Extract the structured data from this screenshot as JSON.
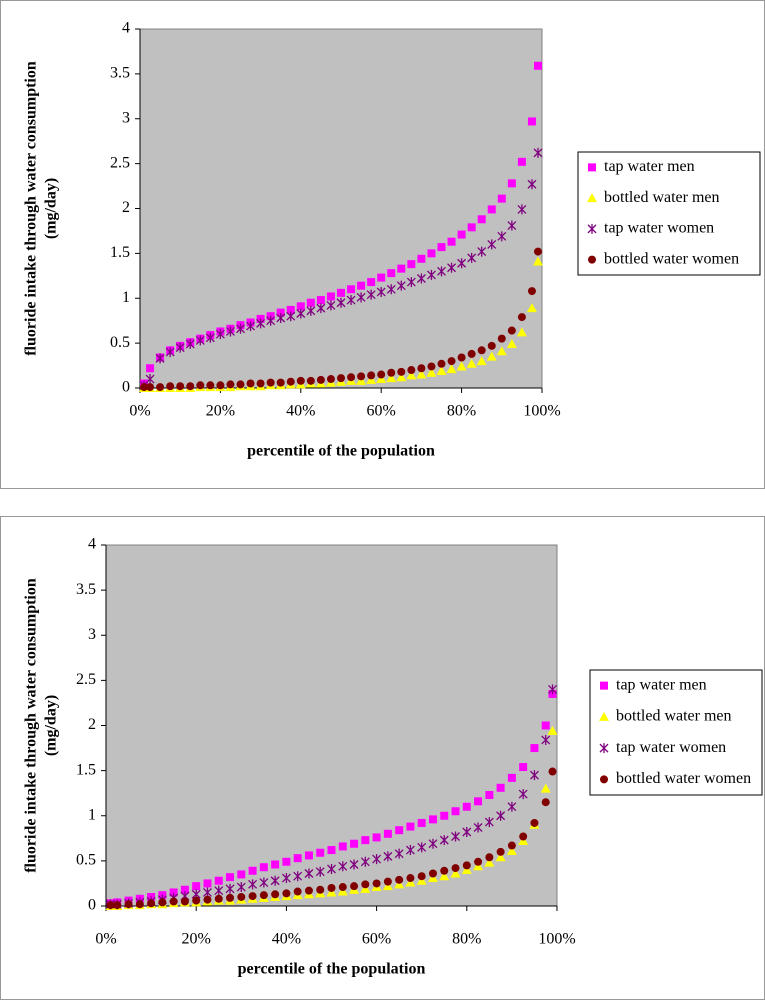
{
  "chart_data": [
    {
      "type": "scatter",
      "xlabel": "percentile of the population",
      "ylabel": [
        "fluoride intake through water consumption",
        "(mg/day)"
      ],
      "x": [
        1,
        2.5,
        5,
        7.5,
        10,
        12.5,
        15,
        17.5,
        20,
        22.5,
        25,
        27.5,
        30,
        32.5,
        35,
        37.5,
        40,
        42.5,
        45,
        47.5,
        50,
        52.5,
        55,
        57.5,
        60,
        62.5,
        65,
        67.5,
        70,
        72.5,
        75,
        77.5,
        80,
        82.5,
        85,
        87.5,
        90,
        92.5,
        95,
        97.5,
        99
      ],
      "xlim": [
        0,
        100
      ],
      "xticks": [
        {
          "value": 0,
          "label": "0%"
        },
        {
          "value": 20,
          "label": "20%"
        },
        {
          "value": 40,
          "label": "40%"
        },
        {
          "value": 60,
          "label": "60%"
        },
        {
          "value": 80,
          "label": "80%"
        },
        {
          "value": 100,
          "label": "100%"
        }
      ],
      "ylim": [
        0,
        4
      ],
      "yticks": [
        0,
        0.5,
        1,
        1.5,
        2,
        2.5,
        3,
        3.5,
        4
      ],
      "grid": false,
      "legend": "right",
      "series": [
        {
          "name": "tap water men",
          "color": "#ff00ff",
          "marker": "square",
          "values": [
            0.05,
            0.22,
            0.34,
            0.42,
            0.47,
            0.51,
            0.55,
            0.59,
            0.63,
            0.66,
            0.7,
            0.73,
            0.77,
            0.8,
            0.84,
            0.87,
            0.91,
            0.95,
            0.98,
            1.02,
            1.06,
            1.1,
            1.14,
            1.18,
            1.23,
            1.28,
            1.33,
            1.38,
            1.44,
            1.5,
            1.57,
            1.63,
            1.71,
            1.79,
            1.88,
            1.99,
            2.11,
            2.28,
            2.52,
            2.97,
            3.59
          ]
        },
        {
          "name": "bottled water men",
          "color": "#ffff00",
          "marker": "triangle",
          "values": [
            0,
            0,
            0,
            0,
            0,
            0,
            0.01,
            0.01,
            0.01,
            0.01,
            0.02,
            0.02,
            0.02,
            0.03,
            0.03,
            0.04,
            0.04,
            0.05,
            0.05,
            0.06,
            0.07,
            0.08,
            0.08,
            0.09,
            0.1,
            0.11,
            0.12,
            0.14,
            0.15,
            0.17,
            0.19,
            0.21,
            0.24,
            0.27,
            0.3,
            0.35,
            0.41,
            0.49,
            0.62,
            0.89,
            1.41
          ]
        },
        {
          "name": "tap water women",
          "color": "#800080",
          "marker": "asterisk",
          "values": [
            0.03,
            0.1,
            0.33,
            0.4,
            0.45,
            0.49,
            0.53,
            0.56,
            0.6,
            0.63,
            0.66,
            0.69,
            0.72,
            0.75,
            0.78,
            0.8,
            0.83,
            0.86,
            0.89,
            0.92,
            0.95,
            0.98,
            1.01,
            1.04,
            1.07,
            1.1,
            1.14,
            1.18,
            1.22,
            1.26,
            1.3,
            1.34,
            1.39,
            1.45,
            1.52,
            1.6,
            1.69,
            1.81,
            1.99,
            2.27,
            2.62
          ]
        },
        {
          "name": "bottled water women",
          "color": "#800000",
          "marker": "circle",
          "values": [
            0.01,
            0.01,
            0.01,
            0.02,
            0.02,
            0.02,
            0.03,
            0.03,
            0.03,
            0.04,
            0.04,
            0.05,
            0.05,
            0.06,
            0.06,
            0.07,
            0.08,
            0.08,
            0.09,
            0.1,
            0.11,
            0.12,
            0.13,
            0.14,
            0.15,
            0.17,
            0.18,
            0.2,
            0.22,
            0.24,
            0.27,
            0.3,
            0.34,
            0.38,
            0.42,
            0.47,
            0.55,
            0.64,
            0.79,
            1.08,
            1.52
          ]
        }
      ]
    },
    {
      "type": "scatter",
      "xlabel": "percentile of the population",
      "ylabel": [
        "fluoride intake through water consumption",
        "(mg/day)"
      ],
      "x": [
        1,
        2.5,
        5,
        7.5,
        10,
        12.5,
        15,
        17.5,
        20,
        22.5,
        25,
        27.5,
        30,
        32.5,
        35,
        37.5,
        40,
        42.5,
        45,
        47.5,
        50,
        52.5,
        55,
        57.5,
        60,
        62.5,
        65,
        67.5,
        70,
        72.5,
        75,
        77.5,
        80,
        82.5,
        85,
        87.5,
        90,
        92.5,
        95,
        97.5,
        99
      ],
      "xlim": [
        0,
        100
      ],
      "xticks": [
        {
          "value": 0,
          "label": "0%"
        },
        {
          "value": 20,
          "label": "20%"
        },
        {
          "value": 40,
          "label": "40%"
        },
        {
          "value": 60,
          "label": "60%"
        },
        {
          "value": 80,
          "label": "80%"
        },
        {
          "value": 100,
          "label": "100%"
        }
      ],
      "ylim": [
        0,
        4
      ],
      "yticks": [
        0,
        0.5,
        1,
        1.5,
        2,
        2.5,
        3,
        3.5,
        4
      ],
      "grid": false,
      "legend": "right",
      "series": [
        {
          "name": "tap water men",
          "color": "#ff00ff",
          "marker": "square",
          "values": [
            0.03,
            0.04,
            0.06,
            0.08,
            0.1,
            0.12,
            0.15,
            0.18,
            0.22,
            0.25,
            0.28,
            0.32,
            0.35,
            0.39,
            0.43,
            0.46,
            0.49,
            0.53,
            0.56,
            0.59,
            0.62,
            0.66,
            0.69,
            0.73,
            0.76,
            0.8,
            0.84,
            0.88,
            0.92,
            0.96,
            1.0,
            1.05,
            1.1,
            1.16,
            1.23,
            1.31,
            1.42,
            1.54,
            1.75,
            2.0,
            2.35
          ]
        },
        {
          "name": "bottled water men",
          "color": "#ffff00",
          "marker": "triangle",
          "values": [
            0,
            0,
            0.01,
            0.01,
            0.02,
            0.02,
            0.03,
            0.04,
            0.04,
            0.05,
            0.06,
            0.06,
            0.07,
            0.08,
            0.09,
            0.1,
            0.11,
            0.12,
            0.13,
            0.14,
            0.15,
            0.16,
            0.18,
            0.19,
            0.21,
            0.22,
            0.24,
            0.26,
            0.28,
            0.31,
            0.33,
            0.36,
            0.4,
            0.44,
            0.48,
            0.54,
            0.61,
            0.72,
            0.9,
            1.3,
            1.94
          ]
        },
        {
          "name": "tap water women",
          "color": "#800080",
          "marker": "asterisk",
          "values": [
            0.02,
            0.02,
            0.03,
            0.04,
            0.05,
            0.07,
            0.09,
            0.11,
            0.13,
            0.15,
            0.17,
            0.19,
            0.21,
            0.24,
            0.26,
            0.28,
            0.31,
            0.33,
            0.36,
            0.38,
            0.41,
            0.44,
            0.46,
            0.49,
            0.52,
            0.55,
            0.58,
            0.62,
            0.65,
            0.69,
            0.73,
            0.77,
            0.82,
            0.87,
            0.93,
            1.0,
            1.1,
            1.24,
            1.45,
            1.84,
            2.4
          ]
        },
        {
          "name": "bottled water women",
          "color": "#800000",
          "marker": "circle",
          "values": [
            0.01,
            0.01,
            0.02,
            0.02,
            0.03,
            0.04,
            0.05,
            0.05,
            0.06,
            0.07,
            0.08,
            0.09,
            0.1,
            0.11,
            0.12,
            0.13,
            0.14,
            0.16,
            0.17,
            0.18,
            0.2,
            0.21,
            0.22,
            0.24,
            0.25,
            0.27,
            0.29,
            0.31,
            0.33,
            0.36,
            0.39,
            0.42,
            0.45,
            0.49,
            0.54,
            0.6,
            0.67,
            0.77,
            0.92,
            1.15,
            1.49
          ]
        }
      ]
    }
  ]
}
